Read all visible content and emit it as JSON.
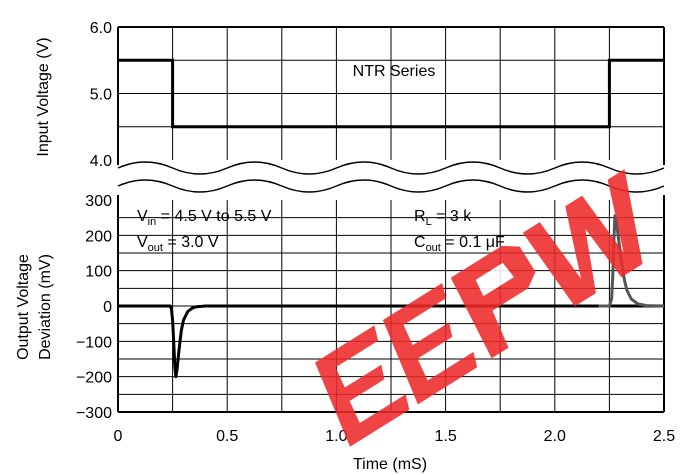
{
  "chart_data": [
    {
      "type": "line",
      "panel": "top",
      "ylabel": "Input Voltage (V)",
      "ylim": [
        4.0,
        6.0
      ],
      "yticks": [
        "6.0",
        "5.0",
        "4.0"
      ],
      "annotation": "NTR Series",
      "series": [
        {
          "x": [
            0,
            0.25,
            0.25,
            2.25,
            2.25,
            2.5
          ],
          "y": [
            5.5,
            5.5,
            4.5,
            4.5,
            5.5,
            5.5
          ]
        }
      ]
    },
    {
      "type": "line",
      "panel": "bottom",
      "ylabel_line1": "Output Voltage",
      "ylabel_line2": "Deviation (mV)",
      "xlabel": "Time (mS)",
      "xlim": [
        0,
        2.5
      ],
      "ylim": [
        -300,
        300
      ],
      "xticks": [
        "0",
        "0.5",
        "1.0",
        "1.5",
        "2.0",
        "2.5"
      ],
      "yticks": [
        "300",
        "200",
        "100",
        "0",
        "−100",
        "−200",
        "−300"
      ],
      "annotations": {
        "vin": {
          "main": "V",
          "sub": "in",
          "rest": " = 4.5 V to 5.5 V"
        },
        "vout": {
          "main": "V",
          "sub": "out",
          "rest": " = 3.0 V"
        },
        "rl": {
          "main": "R",
          "sub": "L",
          "rest": " = 3 k"
        },
        "cout": {
          "main": "C",
          "sub": "out",
          "rest": " = 0.1 μF"
        }
      },
      "series": [
        {
          "color": "#000000",
          "x": [
            0,
            0.24,
            0.245,
            0.25,
            0.255,
            0.26,
            0.265,
            0.27,
            0.28,
            0.29,
            0.3,
            0.32,
            0.34,
            0.36,
            0.38,
            0.4,
            0.45,
            2.5
          ],
          "y": [
            0,
            0,
            -10,
            -40,
            -100,
            -170,
            -200,
            -180,
            -120,
            -70,
            -40,
            -15,
            -6,
            -2,
            -1,
            0,
            0,
            0
          ]
        },
        {
          "color": "#555555",
          "x": [
            2.2,
            2.25,
            2.26,
            2.265,
            2.27,
            2.275,
            2.28,
            2.29,
            2.3,
            2.31,
            2.32,
            2.33,
            2.35,
            2.38,
            2.42,
            2.5
          ],
          "y": [
            0,
            0,
            20,
            80,
            180,
            255,
            250,
            200,
            150,
            105,
            70,
            45,
            20,
            6,
            1,
            0
          ]
        }
      ]
    }
  ],
  "watermark": {
    "letters": "EEPW",
    "color": "#ee2b2b",
    "description": "red watermark logo"
  }
}
